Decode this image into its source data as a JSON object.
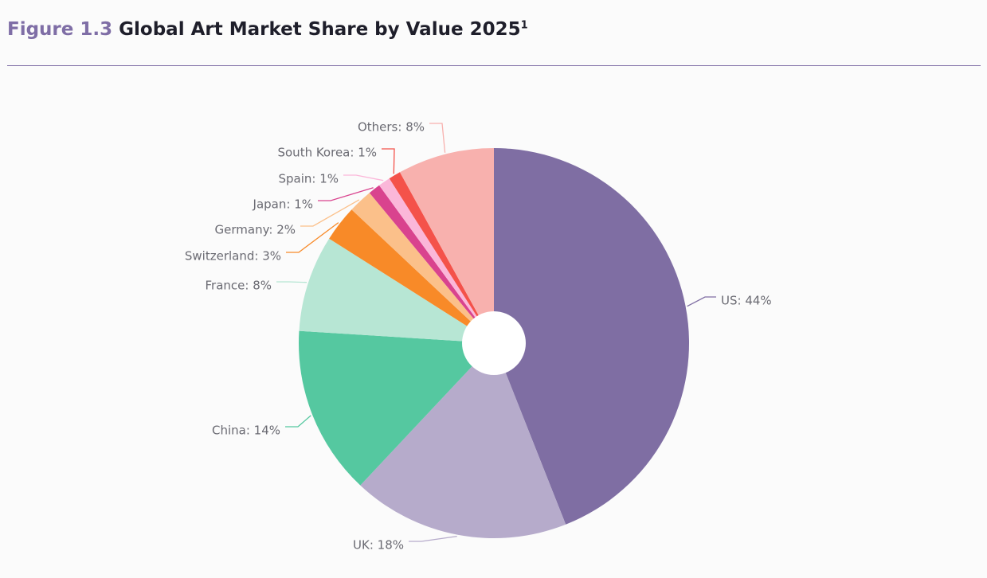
{
  "header": {
    "figure_number": "Figure 1.3",
    "title": "Global Art Market Share by Value 2025",
    "superscript": "1"
  },
  "chart_data": {
    "type": "pie",
    "title": "Global Art Market Share by Value 2025",
    "unit": "%",
    "legend": "none",
    "slices": [
      {
        "label": "US",
        "value": 44,
        "display": "US: 44%",
        "color": "#7f6ea3"
      },
      {
        "label": "UK",
        "value": 18,
        "display": "UK: 18%",
        "color": "#b6abcb"
      },
      {
        "label": "China",
        "value": 14,
        "display": "China: 14%",
        "color": "#55c8a0"
      },
      {
        "label": "France",
        "value": 8,
        "display": "France: 8%",
        "color": "#b7e6d4"
      },
      {
        "label": "Switzerland",
        "value": 3,
        "display": "Switzerland: 3%",
        "color": "#f88a28"
      },
      {
        "label": "Germany",
        "value": 2,
        "display": "Germany: 2%",
        "color": "#fbc08a"
      },
      {
        "label": "Japan",
        "value": 1,
        "display": "Japan: 1%",
        "color": "#d9438e"
      },
      {
        "label": "Spain",
        "value": 1,
        "display": "Spain: 1%",
        "color": "#fbb7d9"
      },
      {
        "label": "South Korea",
        "value": 1,
        "display": "South Korea: 1%",
        "color": "#f4524a"
      },
      {
        "label": "Others",
        "value": 8,
        "display": "Others: 8%",
        "color": "#f8b1ae"
      }
    ]
  }
}
